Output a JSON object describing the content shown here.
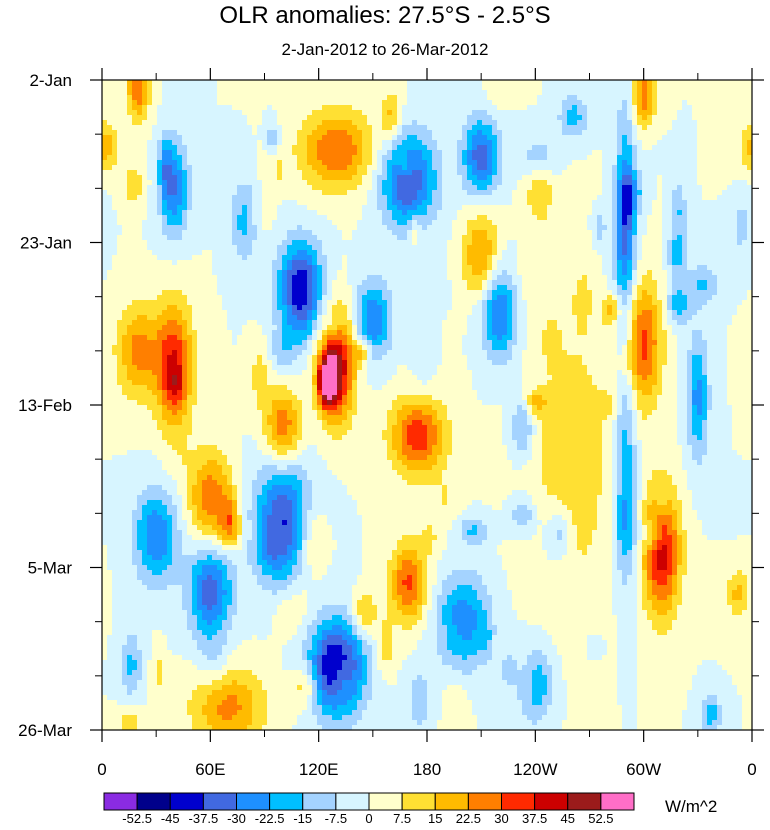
{
  "chart_data": {
    "type": "heatmap",
    "title": "OLR anomalies: 27.5°S - 2.5°S",
    "subtitle": "2-Jan-2012 to 26-Mar-2012",
    "x_ticks": [
      "0",
      "60E",
      "120E",
      "180",
      "120W",
      "60W",
      "0"
    ],
    "x_range_deg_east": [
      0,
      360
    ],
    "y_ticks": [
      "2-Jan",
      "23-Jan",
      "13-Feb",
      "5-Mar",
      "26-Mar"
    ],
    "y_range": [
      "2012-01-02",
      "2012-03-26"
    ],
    "colorbar": {
      "unit": "W/m^2",
      "labels": [
        "-52.5",
        "-45",
        "-37.5",
        "-30",
        "-22.5",
        "-15",
        "-7.5",
        "0",
        "7.5",
        "15",
        "22.5",
        "30",
        "37.5",
        "45",
        "52.5"
      ],
      "colors": [
        "#8a2be2",
        "#00008b",
        "#0000cd",
        "#4169e1",
        "#1e90ff",
        "#00bfff",
        "#a4d3ff",
        "#d7f5ff",
        "#ffffcc",
        "#ffe033",
        "#ffbb00",
        "#ff7f00",
        "#ff2a00",
        "#cc0000",
        "#9b1b1b",
        "#ff6ec7"
      ]
    },
    "anomaly_regions": [
      {
        "lon": 130,
        "date": "2012-02-08",
        "value": 45,
        "spread_lon": 10,
        "spread_days": 7
      },
      {
        "lon": 125,
        "date": "2012-02-10",
        "value": 55,
        "spread_lon": 5,
        "spread_days": 3
      },
      {
        "lon": 175,
        "date": "2012-02-17",
        "value": 35,
        "spread_lon": 15,
        "spread_days": 5
      },
      {
        "lon": 40,
        "date": "2012-02-08",
        "value": 38,
        "spread_lon": 10,
        "spread_days": 8
      },
      {
        "lon": 20,
        "date": "2012-02-06",
        "value": 25,
        "spread_lon": 12,
        "spread_days": 6
      },
      {
        "lon": 310,
        "date": "2012-03-03",
        "value": 42,
        "spread_lon": 10,
        "spread_days": 8
      },
      {
        "lon": 300,
        "date": "2012-02-05",
        "value": 32,
        "spread_lon": 10,
        "spread_days": 8
      },
      {
        "lon": 100,
        "date": "2012-02-16",
        "value": 30,
        "spread_lon": 10,
        "spread_days": 5
      },
      {
        "lon": 170,
        "date": "2012-03-07",
        "value": 32,
        "spread_lon": 10,
        "spread_days": 5
      },
      {
        "lon": 130,
        "date": "2012-01-11",
        "value": 30,
        "spread_lon": 20,
        "spread_days": 5
      },
      {
        "lon": 210,
        "date": "2012-01-25",
        "value": 25,
        "spread_lon": 10,
        "spread_days": 6
      },
      {
        "lon": 70,
        "date": "2012-03-23",
        "value": 25,
        "spread_lon": 20,
        "spread_days": 5
      },
      {
        "lon": 60,
        "date": "2012-02-25",
        "value": 28,
        "spread_lon": 12,
        "spread_days": 6
      },
      {
        "lon": 20,
        "date": "2012-01-03",
        "value": 30,
        "spread_lon": 6,
        "spread_days": 4
      },
      {
        "lon": 300,
        "date": "2012-01-04",
        "value": 28,
        "spread_lon": 6,
        "spread_days": 4
      },
      {
        "lon": 110,
        "date": "2012-01-29",
        "value": -45,
        "spread_lon": 12,
        "spread_days": 6
      },
      {
        "lon": 130,
        "date": "2012-03-18",
        "value": -50,
        "spread_lon": 15,
        "spread_days": 6
      },
      {
        "lon": 170,
        "date": "2012-01-15",
        "value": -40,
        "spread_lon": 15,
        "spread_days": 6
      },
      {
        "lon": 210,
        "date": "2012-01-12",
        "value": -35,
        "spread_lon": 10,
        "spread_days": 5
      },
      {
        "lon": 100,
        "date": "2012-02-28",
        "value": -38,
        "spread_lon": 15,
        "spread_days": 8
      },
      {
        "lon": 60,
        "date": "2012-03-08",
        "value": -35,
        "spread_lon": 12,
        "spread_days": 6
      },
      {
        "lon": 40,
        "date": "2012-01-16",
        "value": -30,
        "spread_lon": 8,
        "spread_days": 6
      },
      {
        "lon": 30,
        "date": "2012-03-01",
        "value": -30,
        "spread_lon": 12,
        "spread_days": 6
      },
      {
        "lon": 220,
        "date": "2012-02-01",
        "value": -32,
        "spread_lon": 10,
        "spread_days": 6
      },
      {
        "lon": 150,
        "date": "2012-02-02",
        "value": -30,
        "spread_lon": 10,
        "spread_days": 5
      },
      {
        "lon": 200,
        "date": "2012-03-12",
        "value": -28,
        "spread_lon": 15,
        "spread_days": 6
      },
      {
        "lon": 240,
        "date": "2012-03-20",
        "value": -22,
        "spread_lon": 10,
        "spread_days": 5
      },
      {
        "lon": 290,
        "date": "2012-01-20",
        "value": -25,
        "spread_lon": 6,
        "spread_days": 15
      },
      {
        "lon": 290,
        "date": "2012-02-22",
        "value": -22,
        "spread_lon": 6,
        "spread_days": 15
      },
      {
        "lon": 330,
        "date": "2012-02-12",
        "value": -25,
        "spread_lon": 6,
        "spread_days": 8
      },
      {
        "lon": 260,
        "date": "2012-02-20",
        "value": 12,
        "spread_lon": 25,
        "spread_days": 20
      },
      {
        "lon": 80,
        "date": "2012-01-20",
        "value": -25,
        "spread_lon": 8,
        "spread_days": 5
      }
    ]
  }
}
